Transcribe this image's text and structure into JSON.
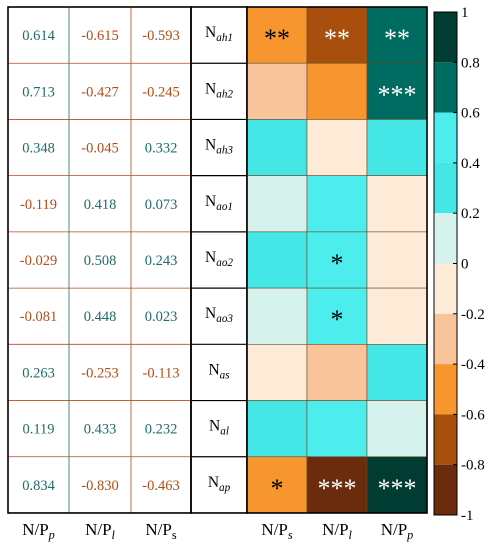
{
  "chart_data": {
    "type": "heatmap",
    "row_labels": [
      {
        "main": "N",
        "sub": "ah1"
      },
      {
        "main": "N",
        "sub": "ah2"
      },
      {
        "main": "N",
        "sub": "ah3"
      },
      {
        "main": "N",
        "sub": "ao1"
      },
      {
        "main": "N",
        "sub": "ao2"
      },
      {
        "main": "N",
        "sub": "ao3"
      },
      {
        "main": "N",
        "sub": "as"
      },
      {
        "main": "N",
        "sub": "al"
      },
      {
        "main": "N",
        "sub": "ap"
      }
    ],
    "table": {
      "columns": [
        {
          "main": "N/P",
          "sub": "p"
        },
        {
          "main": "N/P",
          "sub": "l"
        },
        {
          "main": "N/P",
          "sub": "s"
        }
      ],
      "values": [
        [
          "0.614",
          "-0.615",
          "-0.593"
        ],
        [
          "0.713",
          "-0.427",
          "-0.245"
        ],
        [
          "0.348",
          "-0.045",
          "0.332"
        ],
        [
          "-0.119",
          "0.418",
          "0.073"
        ],
        [
          "-0.029",
          "0.508",
          "0.243"
        ],
        [
          "-0.081",
          "0.448",
          "0.023"
        ],
        [
          "0.263",
          "-0.253",
          "-0.113"
        ],
        [
          "0.119",
          "0.433",
          "0.232"
        ],
        [
          "0.834",
          "-0.830",
          "-0.463"
        ]
      ]
    },
    "heatmap": {
      "columns": [
        {
          "main": "N/P",
          "sub": "s"
        },
        {
          "main": "N/P",
          "sub": "l"
        },
        {
          "main": "N/P",
          "sub": "p"
        }
      ],
      "values": [
        [
          -0.593,
          -0.615,
          0.614
        ],
        [
          -0.245,
          -0.427,
          0.713
        ],
        [
          0.332,
          -0.045,
          0.348
        ],
        [
          0.073,
          0.418,
          -0.119
        ],
        [
          0.243,
          0.508,
          -0.029
        ],
        [
          0.023,
          0.448,
          -0.081
        ],
        [
          -0.113,
          -0.253,
          0.263
        ],
        [
          0.232,
          0.433,
          0.119
        ],
        [
          -0.463,
          -0.83,
          0.834
        ]
      ],
      "significance": [
        [
          "**",
          "**",
          "**"
        ],
        [
          "",
          "",
          "***"
        ],
        [
          "",
          "",
          ""
        ],
        [
          "",
          "",
          ""
        ],
        [
          "",
          "*",
          ""
        ],
        [
          "",
          "*",
          ""
        ],
        [
          "",
          "",
          ""
        ],
        [
          "",
          "",
          ""
        ],
        [
          "*",
          "***",
          "***"
        ]
      ]
    },
    "colorbar": {
      "range": [
        -1,
        1
      ],
      "ticks": [
        "1",
        "0.8",
        "0.6",
        "0.4",
        "0.2",
        "0",
        "-0.2",
        "-0.4",
        "-0.6",
        "-0.8",
        "-1"
      ],
      "bins": [
        {
          "from": 0.8,
          "to": 1.0,
          "color": "#003c32"
        },
        {
          "from": 0.6,
          "to": 0.8,
          "color": "#006b60"
        },
        {
          "from": 0.4,
          "to": 0.6,
          "color": "#4deded"
        },
        {
          "from": 0.2,
          "to": 0.4,
          "color": "#44e6e6"
        },
        {
          "from": 0.0,
          "to": 0.2,
          "color": "#d5f3ec"
        },
        {
          "from": -0.2,
          "to": 0.0,
          "color": "#fdebd8"
        },
        {
          "from": -0.4,
          "to": -0.2,
          "color": "#fac49a"
        },
        {
          "from": -0.6,
          "to": -0.4,
          "color": "#f7962f"
        },
        {
          "from": -0.8,
          "to": -0.6,
          "color": "#a84f0e"
        },
        {
          "from": -1.0,
          "to": -0.8,
          "color": "#6a2c0c"
        }
      ]
    },
    "colors": {
      "positive_text": "#1d6e66",
      "negative_text": "#b44b16",
      "star_dark": "#000000",
      "star_light": "#ffffff"
    }
  }
}
